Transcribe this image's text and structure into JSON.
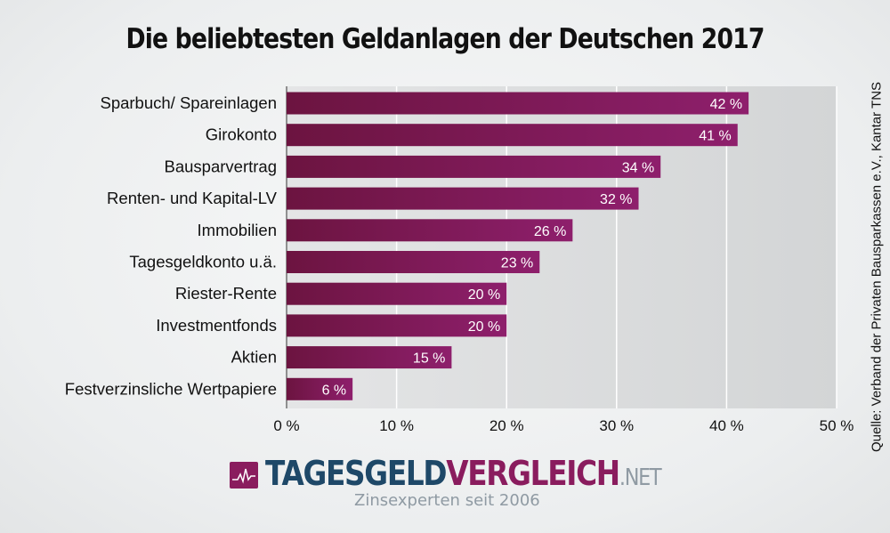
{
  "chart_data": {
    "type": "bar",
    "orientation": "horizontal",
    "title": "Die beliebtesten Geldanlagen der Deutschen 2017",
    "categories": [
      "Sparbuch/ Spareinlagen",
      "Girokonto",
      "Bausparvertrag",
      "Renten- und Kapital-LV",
      "Immobilien",
      "Tagesgeldkonto u.ä.",
      "Riester-Rente",
      "Investmentfonds",
      "Aktien",
      "Festverzinsliche Wertpapiere"
    ],
    "values": [
      42,
      41,
      34,
      32,
      26,
      23,
      20,
      20,
      15,
      6
    ],
    "data_labels": [
      "42 %",
      "41 %",
      "34 %",
      "32 %",
      "26 %",
      "23 %",
      "20 %",
      "20 %",
      "15 %",
      "6 %"
    ],
    "xlim": [
      0,
      50
    ],
    "xticks": [
      0,
      10,
      20,
      30,
      40,
      50
    ],
    "xtick_labels": [
      "0 %",
      "10 %",
      "20 %",
      "30 %",
      "40 %",
      "50 %"
    ],
    "grid": true,
    "colors": {
      "bar_start": "#6c1440",
      "bar_end": "#8e1f6c"
    }
  },
  "source": "Quelle: Verband der Privaten Bausparkassen e.V., Kantar TNS",
  "logo": {
    "part1": "TAGESGELD",
    "part2": "VERGLEICH",
    "part3": ".NET",
    "tagline": "Zinsexperten seit 2006"
  }
}
